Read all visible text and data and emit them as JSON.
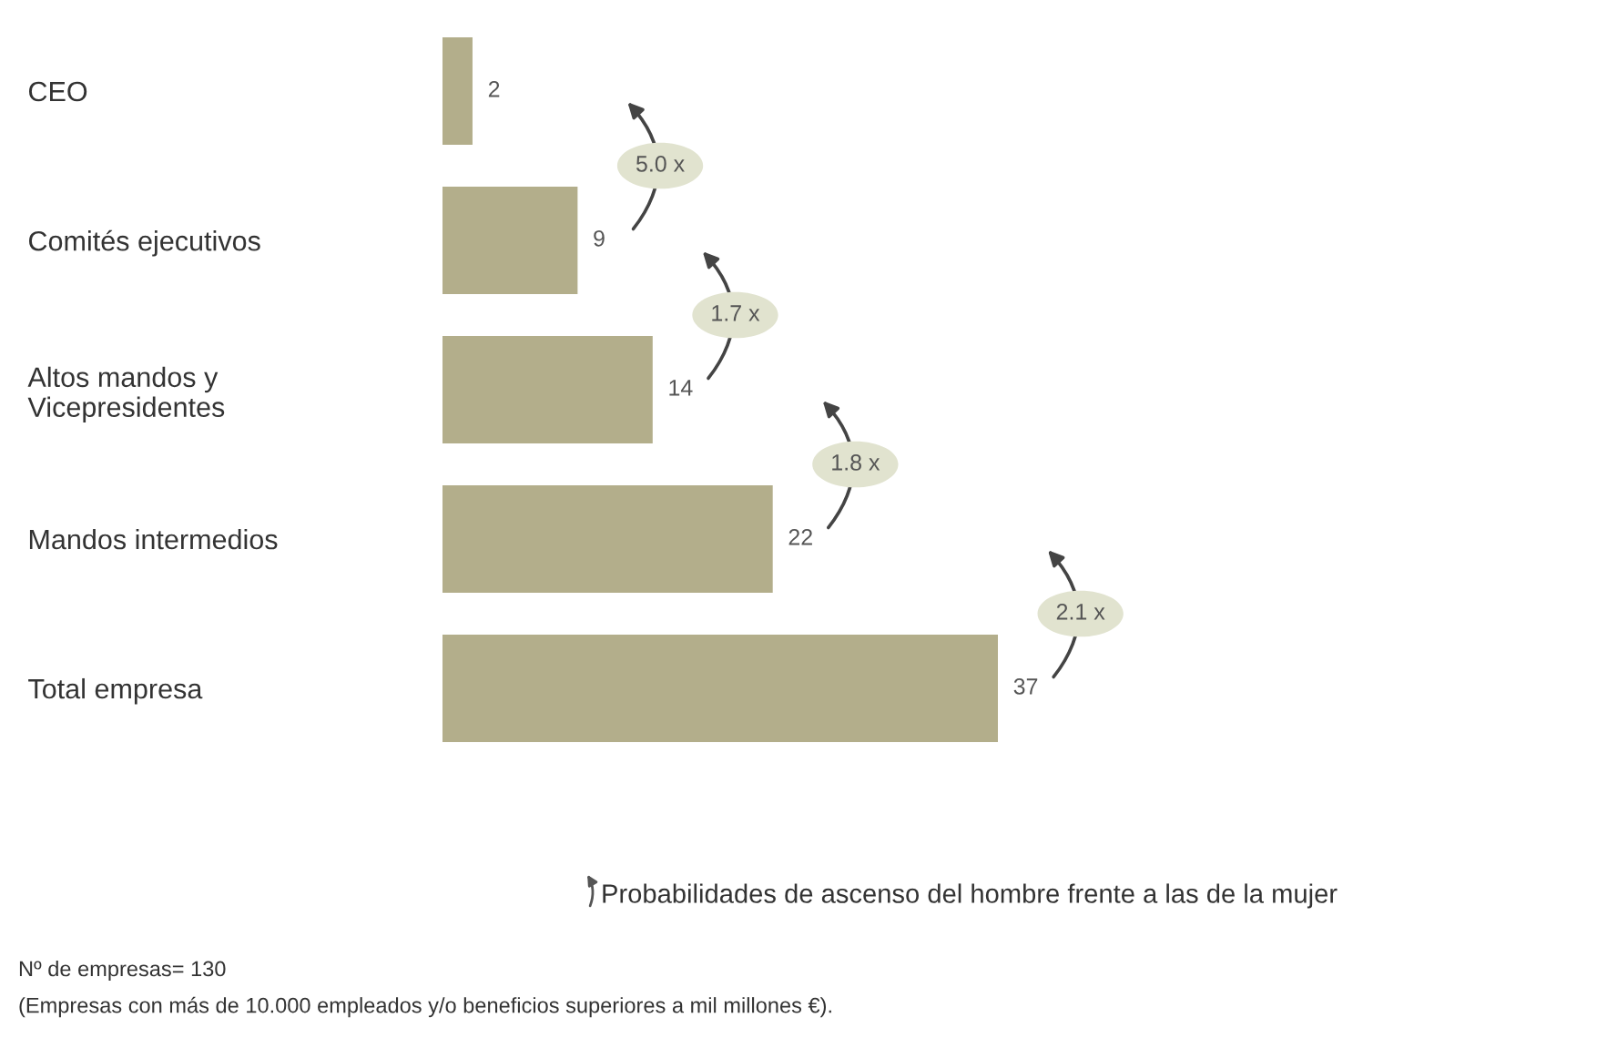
{
  "chart_data": {
    "type": "bar",
    "orientation": "horizontal",
    "categories": [
      "CEO",
      "Comités ejecutivos",
      "Altos mandos y\nVicepresidentes",
      "Mandos intermedios",
      "Total empresa"
    ],
    "values": [
      2,
      9,
      14,
      22,
      37
    ],
    "color": "#b3ae8b",
    "data_labels": true,
    "grid": false,
    "legend": false,
    "tick_labels": "y",
    "annotations": [
      "5.0 x",
      "1.7 x",
      "1.8 x",
      "2.1 x",
      "Probabilidades de ascenso del hombre frente a las de la mujer",
      "Nº de empresas= 130",
      "(Empresas con más de 10.000 empleados y/o beneficios superiores a mil millones €)."
    ]
  }
}
